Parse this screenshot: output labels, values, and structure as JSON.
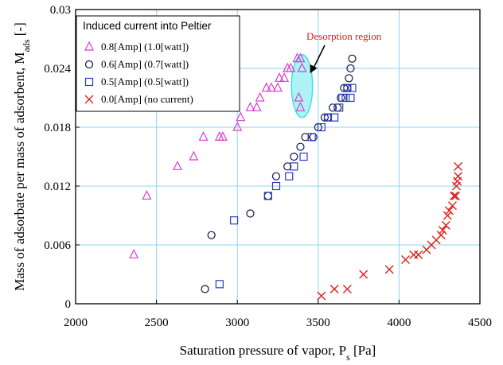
{
  "chart_data": {
    "type": "scatter",
    "xlabel": "Saturation pressure of vapor, P",
    "xlabel_sub": "s",
    "xlabel_unit": " [Pa]",
    "ylabel": "Mass of adsorbate per mass of adsorbent, M",
    "ylabel_sub": "ads",
    "ylabel_unit": " [-]",
    "xlim": [
      2000,
      4500
    ],
    "ylim": [
      0,
      0.03
    ],
    "x_ticks": [
      2000,
      2500,
      3000,
      3500,
      4000,
      4500
    ],
    "x_tick_labels": [
      "2000",
      "2500",
      "3000",
      "3500",
      "4000",
      "4500"
    ],
    "y_ticks": [
      0,
      0.006,
      0.012,
      0.018,
      0.024,
      0.03
    ],
    "y_tick_labels": [
      "0",
      "0.006",
      "0.012",
      "0.018",
      "0.024",
      "0.03"
    ],
    "grid": true,
    "legend": {
      "title": "Induced current into Peltier",
      "placement": "top-left"
    },
    "annotation": {
      "text": "Desorption region",
      "color": "#e0201b",
      "ellipse_fill": "#aef2f5",
      "ellipse_stroke": "#3fe0e6",
      "center": [
        3400,
        0.0222
      ],
      "radius_x": 65,
      "radius_y": 0.0032,
      "arrow_target": [
        3450,
        0.0235
      ]
    },
    "series": [
      {
        "name": "0.8[Amp] (1.0[watt])",
        "marker": "triangle",
        "color": "#d63fd0",
        "points": [
          [
            2360,
            0.005
          ],
          [
            2440,
            0.011
          ],
          [
            2630,
            0.014
          ],
          [
            2730,
            0.015
          ],
          [
            2790,
            0.017
          ],
          [
            2890,
            0.017
          ],
          [
            2910,
            0.017
          ],
          [
            3000,
            0.018
          ],
          [
            3020,
            0.019
          ],
          [
            3080,
            0.02
          ],
          [
            3120,
            0.02
          ],
          [
            3140,
            0.021
          ],
          [
            3180,
            0.022
          ],
          [
            3210,
            0.022
          ],
          [
            3250,
            0.022
          ],
          [
            3260,
            0.023
          ],
          [
            3290,
            0.023
          ],
          [
            3310,
            0.024
          ],
          [
            3330,
            0.024
          ],
          [
            3370,
            0.025
          ],
          [
            3390,
            0.025
          ],
          [
            3400,
            0.024
          ],
          [
            3380,
            0.021
          ],
          [
            3390,
            0.02
          ]
        ]
      },
      {
        "name": "0.6[Amp] (0.7[watt])",
        "marker": "circle",
        "color": "#141447",
        "points": [
          [
            2800,
            0.0015
          ],
          [
            2840,
            0.007
          ],
          [
            3080,
            0.0092
          ],
          [
            3190,
            0.011
          ],
          [
            3240,
            0.013
          ],
          [
            3310,
            0.014
          ],
          [
            3350,
            0.015
          ],
          [
            3390,
            0.016
          ],
          [
            3420,
            0.017
          ],
          [
            3470,
            0.017
          ],
          [
            3500,
            0.018
          ],
          [
            3540,
            0.019
          ],
          [
            3560,
            0.019
          ],
          [
            3590,
            0.02
          ],
          [
            3620,
            0.02
          ],
          [
            3640,
            0.021
          ],
          [
            3660,
            0.022
          ],
          [
            3680,
            0.022
          ],
          [
            3690,
            0.023
          ],
          [
            3700,
            0.024
          ],
          [
            3710,
            0.025
          ]
        ]
      },
      {
        "name": "0.5[Amp] (0.5[watt])",
        "marker": "square",
        "color": "#2b3dc4",
        "points": [
          [
            2890,
            0.002
          ],
          [
            2980,
            0.0085
          ],
          [
            3190,
            0.011
          ],
          [
            3240,
            0.012
          ],
          [
            3320,
            0.013
          ],
          [
            3350,
            0.014
          ],
          [
            3410,
            0.015
          ],
          [
            3460,
            0.017
          ],
          [
            3520,
            0.018
          ],
          [
            3560,
            0.019
          ],
          [
            3600,
            0.019
          ],
          [
            3630,
            0.02
          ],
          [
            3650,
            0.021
          ],
          [
            3670,
            0.021
          ],
          [
            3680,
            0.022
          ],
          [
            3700,
            0.021
          ],
          [
            3710,
            0.022
          ]
        ]
      },
      {
        "name": "0.0[Amp] (no current)",
        "marker": "x",
        "color": "#e0201b",
        "points": [
          [
            3520,
            0.0008
          ],
          [
            3600,
            0.0015
          ],
          [
            3680,
            0.0015
          ],
          [
            3780,
            0.003
          ],
          [
            3940,
            0.0035
          ],
          [
            4040,
            0.0045
          ],
          [
            4090,
            0.005
          ],
          [
            4120,
            0.005
          ],
          [
            4170,
            0.0055
          ],
          [
            4200,
            0.006
          ],
          [
            4230,
            0.0065
          ],
          [
            4260,
            0.007
          ],
          [
            4270,
            0.0075
          ],
          [
            4290,
            0.008
          ],
          [
            4300,
            0.009
          ],
          [
            4310,
            0.0095
          ],
          [
            4330,
            0.01
          ],
          [
            4340,
            0.011
          ],
          [
            4350,
            0.011
          ],
          [
            4355,
            0.012
          ],
          [
            4360,
            0.0125
          ],
          [
            4365,
            0.013
          ],
          [
            4365,
            0.014
          ]
        ]
      }
    ]
  }
}
